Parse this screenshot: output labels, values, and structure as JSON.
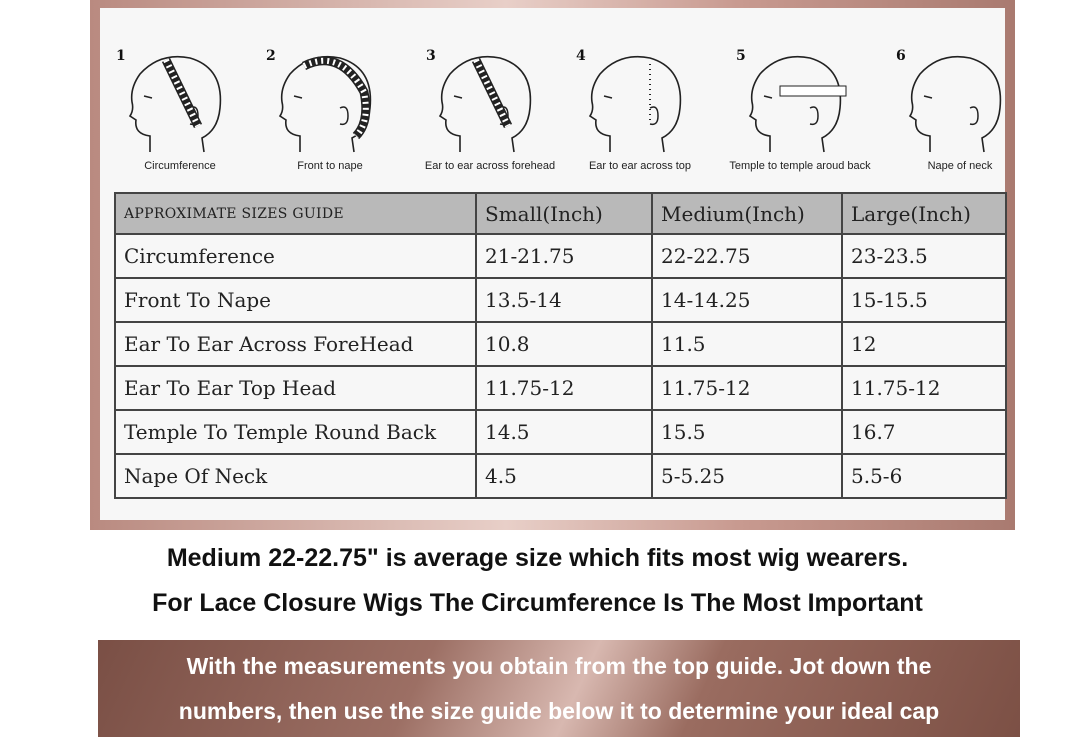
{
  "diagrams": [
    {
      "number": "1",
      "caption": "Circumference"
    },
    {
      "number": "2",
      "caption": "Front to nape"
    },
    {
      "number": "3",
      "caption": "Ear to ear across forehead"
    },
    {
      "number": "4",
      "caption": "Ear to ear across top"
    },
    {
      "number": "5",
      "caption": "Temple to temple aroud back"
    },
    {
      "number": "6",
      "caption": "Nape of neck"
    }
  ],
  "table": {
    "headers": [
      "APPROXIMATE SIZES GUIDE",
      "Small(Inch)",
      "Medium(Inch)",
      "Large(Inch)"
    ],
    "rows": [
      [
        "Circumference",
        "21-21.75",
        "22-22.75",
        "23-23.5"
      ],
      [
        "Front To Nape",
        "13.5-14",
        "14-14.25",
        "15-15.5"
      ],
      [
        "Ear To Ear Across ForeHead",
        "10.8",
        "11.5",
        "12"
      ],
      [
        "Ear To Ear Top Head",
        "11.75-12",
        "11.75-12",
        "11.75-12"
      ],
      [
        "Temple To Temple Round Back",
        "14.5",
        "15.5",
        "16.7"
      ],
      [
        "Nape Of Neck",
        "4.5",
        "5-5.25",
        "5.5-6"
      ]
    ]
  },
  "notes": {
    "line1": "Medium 22-22.75\" is average size which fits most wig wearers.",
    "line2": "For Lace Closure Wigs The Circumference Is The Most Important"
  },
  "banner": {
    "line1": "With the measurements you obtain from the top guide. Jot down the",
    "line2": "numbers, then use the size guide below it to determine your ideal cap"
  }
}
